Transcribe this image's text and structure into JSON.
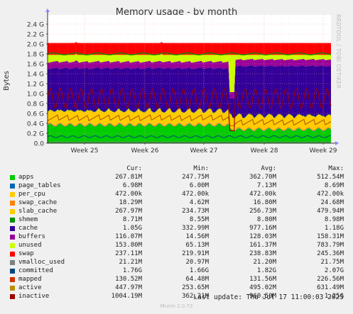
{
  "title": "Memory usage - by month",
  "side_label": "RRDTOOL / TOBI OETIKER",
  "ylabel": "Bytes",
  "y_ticks": [
    "0.0",
    "0.2 G",
    "0.4 G",
    "0.6 G",
    "0.8 G",
    "1.0 G",
    "1.2 G",
    "1.4 G",
    "1.6 G",
    "1.8 G",
    "2.0 G",
    "2.2 G",
    "2.4 G"
  ],
  "x_ticks": [
    "Week 25",
    "Week 26",
    "Week 27",
    "Week 28",
    "Week 29"
  ],
  "chart_data": {
    "type": "area",
    "title": "Memory usage - by month",
    "ylabel": "Bytes",
    "y_unit": "G",
    "ylim": [
      0,
      2.5
    ],
    "grid": true,
    "x": [
      "Week 25",
      "Week 26",
      "Week 27",
      "Week 28",
      "Week 29"
    ],
    "stacked_series": [
      {
        "name": "apps",
        "color": "#00cc00",
        "value_g": 0.3
      },
      {
        "name": "page_tables",
        "color": "#0066b3",
        "value_g": 0.007
      },
      {
        "name": "per_cpu",
        "color": "#ffcc00",
        "value_g": 0.0005
      },
      {
        "name": "swap_cache",
        "color": "#ff8000",
        "value_g": 0.018
      },
      {
        "name": "slab_cache",
        "color": "#ffcc00",
        "value_g": 0.26
      },
      {
        "name": "shmem",
        "color": "#008f00",
        "value_g": 0.009
      },
      {
        "name": "cache",
        "color": "#330099",
        "value_g": 1.0
      },
      {
        "name": "buffers",
        "color": "#990099",
        "value_g": 0.13
      },
      {
        "name": "unused",
        "color": "#ccff00",
        "value_g": 0.16
      },
      {
        "name": "swap",
        "color": "#ff0000",
        "value_g": 0.24
      }
    ],
    "line_series": [
      {
        "name": "vmalloc_used",
        "color": "#808080",
        "value_g": 0.021
      },
      {
        "name": "committed",
        "color": "#008f00",
        "value_g": 1.8
      },
      {
        "name": "mapped",
        "color": "#00487d",
        "value_g": 0.13
      },
      {
        "name": "active",
        "color": "#b35a00",
        "value_g": 0.5
      },
      {
        "name": "inactive",
        "color": "#b38f00",
        "value_g": 0.96
      }
    ]
  },
  "legend": {
    "headers": [
      "Cur:",
      "Min:",
      "Avg:",
      "Max:"
    ],
    "rows": [
      {
        "name": "apps",
        "color": "#00cc00",
        "cur": "267.81M",
        "min": "247.75M",
        "avg": "362.70M",
        "max": "512.54M"
      },
      {
        "name": "page_tables",
        "color": "#0066b3",
        "cur": "6.98M",
        "min": "6.00M",
        "avg": "7.13M",
        "max": "8.69M"
      },
      {
        "name": "per_cpu",
        "color": "#ffcc00",
        "cur": "472.00k",
        "min": "472.00k",
        "avg": "472.00k",
        "max": "472.00k"
      },
      {
        "name": "swap_cache",
        "color": "#ff8000",
        "cur": "18.29M",
        "min": "4.62M",
        "avg": "16.80M",
        "max": "24.68M"
      },
      {
        "name": "slab_cache",
        "color": "#ffcc00",
        "cur": "267.97M",
        "min": "234.73M",
        "avg": "256.73M",
        "max": "479.94M"
      },
      {
        "name": "shmem",
        "color": "#008f00",
        "cur": "8.71M",
        "min": "8.55M",
        "avg": "8.80M",
        "max": "8.98M"
      },
      {
        "name": "cache",
        "color": "#330099",
        "cur": "1.05G",
        "min": "332.99M",
        "avg": "977.16M",
        "max": "1.18G"
      },
      {
        "name": "buffers",
        "color": "#990099",
        "cur": "116.07M",
        "min": "14.56M",
        "avg": "128.03M",
        "max": "158.31M"
      },
      {
        "name": "unused",
        "color": "#ccff00",
        "cur": "153.80M",
        "min": "65.13M",
        "avg": "161.37M",
        "max": "783.79M"
      },
      {
        "name": "swap",
        "color": "#ff0000",
        "cur": "237.11M",
        "min": "219.91M",
        "avg": "238.83M",
        "max": "245.36M"
      },
      {
        "name": "vmalloc_used",
        "color": "#808080",
        "cur": "21.21M",
        "min": "20.97M",
        "avg": "21.20M",
        "max": "21.75M"
      },
      {
        "name": "committed",
        "color": "#00487d",
        "cur": "1.76G",
        "min": "1.66G",
        "avg": "1.82G",
        "max": "2.07G"
      },
      {
        "name": "mapped",
        "color": "#cc3300",
        "cur": "130.52M",
        "min": "64.48M",
        "avg": "131.56M",
        "max": "226.56M"
      },
      {
        "name": "active",
        "color": "#b38f00",
        "cur": "447.97M",
        "min": "253.65M",
        "avg": "495.02M",
        "max": "631.49M"
      },
      {
        "name": "inactive",
        "color": "#990000",
        "cur": "1004.19M",
        "min": "362.21M",
        "avg": "960.50M",
        "max": "1.25G"
      }
    ]
  },
  "last_update": "Last update: Thu Jul 17 11:00:03 2025",
  "version": "Munin 2.0.73"
}
